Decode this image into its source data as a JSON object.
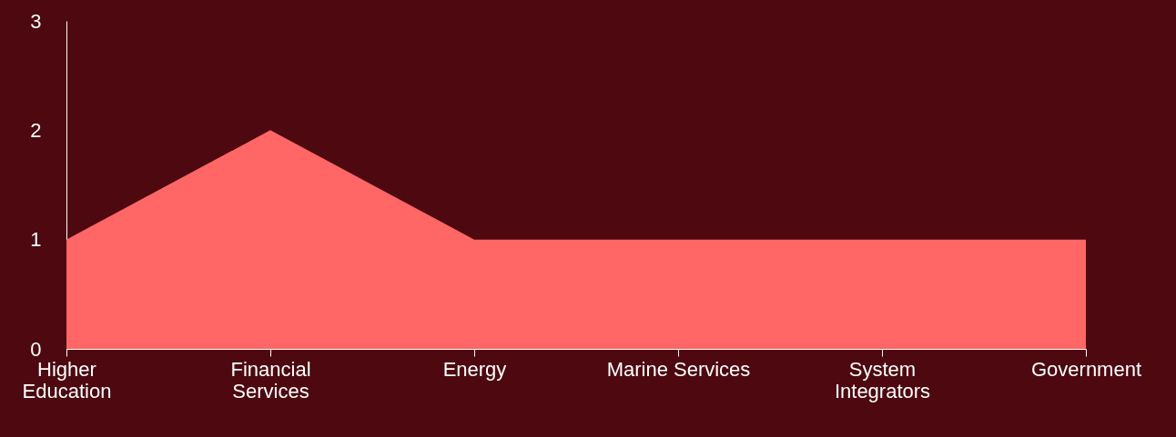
{
  "chart_data": {
    "type": "area",
    "categories": [
      "Higher\nEducation",
      "Financial\nServices",
      "Energy",
      "Marine Services",
      "System\nIntegrators",
      "Government"
    ],
    "series": [
      {
        "color": "#ff6666",
        "values": [
          1,
          2,
          1,
          1,
          1,
          1
        ]
      }
    ],
    "ylim": [
      0,
      3
    ],
    "yticks": [
      0,
      1,
      2,
      3
    ]
  }
}
